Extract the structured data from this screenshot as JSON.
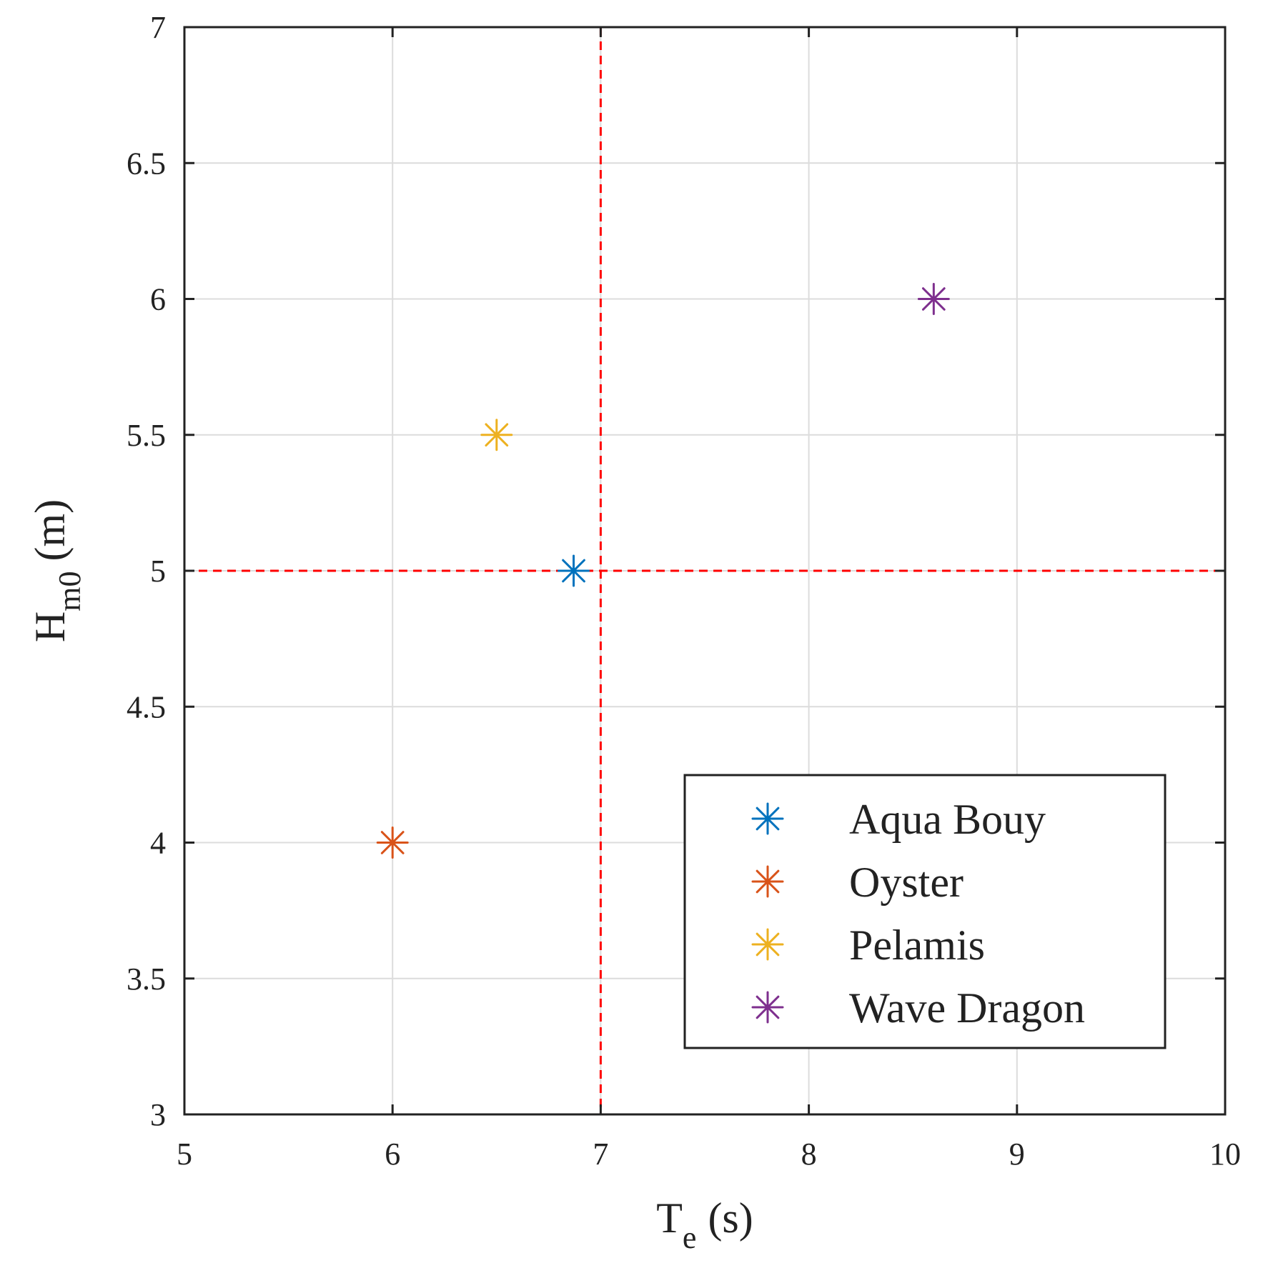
{
  "chart_data": {
    "type": "scatter",
    "xlabel": {
      "main": "T",
      "sub": "e",
      "unit": "(s)"
    },
    "ylabel": {
      "main": "H",
      "sub": "m0",
      "unit": "(m)"
    },
    "xlim": [
      5,
      10
    ],
    "ylim": [
      3,
      7
    ],
    "xticks": [
      "5",
      "6",
      "7",
      "8",
      "9",
      "10"
    ],
    "yticks": [
      "3",
      "3.5",
      "4",
      "4.5",
      "5",
      "5.5",
      "6",
      "6.5",
      "7"
    ],
    "grid": true,
    "legend_position": "bottom-right",
    "series": [
      {
        "name": "Aqua Bouy",
        "color": "#0072BD",
        "marker": "asterisk",
        "x": 6.87,
        "y": 5.0
      },
      {
        "name": "Oyster",
        "color": "#D95319",
        "marker": "asterisk",
        "x": 6.0,
        "y": 4.0
      },
      {
        "name": "Pelamis",
        "color": "#EDB120",
        "marker": "asterisk",
        "x": 6.5,
        "y": 5.5
      },
      {
        "name": "Wave Dragon",
        "color": "#7E2F8E",
        "marker": "asterisk",
        "x": 8.6,
        "y": 6.0
      }
    ],
    "reference_lines": [
      {
        "orientation": "vertical",
        "value": 7,
        "color": "#FF0000",
        "style": "dashed"
      },
      {
        "orientation": "horizontal",
        "value": 5,
        "color": "#FF0000",
        "style": "dashed"
      }
    ]
  }
}
